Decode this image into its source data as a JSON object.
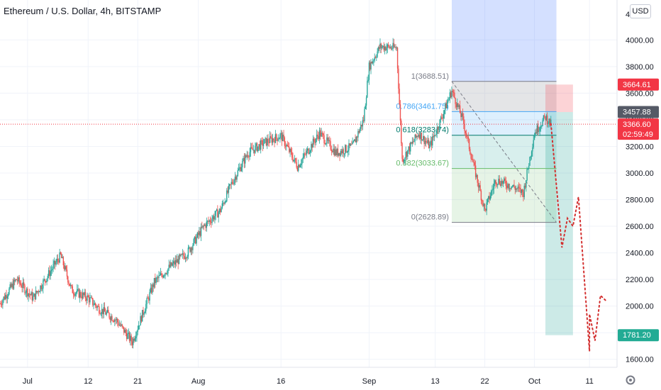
{
  "header": {
    "title": "Ethereum / U.S. Dollar, 4h, BITSTAMP",
    "currency_button": "USD"
  },
  "colors": {
    "up": "#26a69a",
    "down": "#ef5350",
    "grid": "#f0f3fa",
    "axis_text": "#131722",
    "fib_line": "#787b86",
    "current_price_line": "#f23645",
    "projection": "#d32f2f",
    "zone_blue": "#2962ff",
    "zone_red": "#f23645",
    "zone_teal": "#009688"
  },
  "chart_data": {
    "type": "candlestick",
    "symbol": "Ethereum / U.S. Dollar",
    "interval": "4h",
    "exchange": "BITSTAMP",
    "y_axis": {
      "range": [
        1540,
        4300
      ],
      "ticks": [
        4000,
        3800,
        3600,
        3400,
        3200,
        3000,
        2800,
        2600,
        2400,
        2200,
        2000,
        1800,
        1600
      ],
      "tick_labels": [
        "4000.00",
        "3800.00",
        "3600.00",
        "3400.00",
        "3200.00",
        "3000.00",
        "2800.00",
        "2600.00",
        "2400.00",
        "2200.00",
        "2000.00",
        "1800.00",
        "1600.00"
      ],
      "partial_top_label": "4"
    },
    "x_axis": {
      "start": "2021-06-26",
      "end": "2021-10-16",
      "ticks": [
        {
          "date": "2021-07-01",
          "label": "Jul"
        },
        {
          "date": "2021-07-12",
          "label": "12"
        },
        {
          "date": "2021-07-21",
          "label": "21"
        },
        {
          "date": "2021-08-01",
          "label": "Aug"
        },
        {
          "date": "2021-08-16",
          "label": "16"
        },
        {
          "date": "2021-09-01",
          "label": "Sep"
        },
        {
          "date": "2021-09-13",
          "label": "13"
        },
        {
          "date": "2021-09-22",
          "label": "22"
        },
        {
          "date": "2021-10-01",
          "label": "Oct"
        },
        {
          "date": "2021-10-11",
          "label": "11"
        }
      ]
    },
    "price_path": [
      {
        "date": "2021-06-26",
        "price": 2020
      },
      {
        "date": "2021-06-29",
        "price": 2200
      },
      {
        "date": "2021-07-02",
        "price": 2060
      },
      {
        "date": "2021-07-07",
        "price": 2380
      },
      {
        "date": "2021-07-09",
        "price": 2120
      },
      {
        "date": "2021-07-12",
        "price": 2060
      },
      {
        "date": "2021-07-14",
        "price": 1980
      },
      {
        "date": "2021-07-17",
        "price": 1900
      },
      {
        "date": "2021-07-20",
        "price": 1730
      },
      {
        "date": "2021-07-24",
        "price": 2180
      },
      {
        "date": "2021-07-27",
        "price": 2300
      },
      {
        "date": "2021-07-30",
        "price": 2400
      },
      {
        "date": "2021-08-02",
        "price": 2600
      },
      {
        "date": "2021-08-05",
        "price": 2720
      },
      {
        "date": "2021-08-07",
        "price": 2920
      },
      {
        "date": "2021-08-10",
        "price": 3150
      },
      {
        "date": "2021-08-13",
        "price": 3230
      },
      {
        "date": "2021-08-16",
        "price": 3280
      },
      {
        "date": "2021-08-19",
        "price": 3050
      },
      {
        "date": "2021-08-23",
        "price": 3300
      },
      {
        "date": "2021-08-26",
        "price": 3150
      },
      {
        "date": "2021-08-29",
        "price": 3200
      },
      {
        "date": "2021-08-31",
        "price": 3400
      },
      {
        "date": "2021-09-01",
        "price": 3800
      },
      {
        "date": "2021-09-03",
        "price": 3950
      },
      {
        "date": "2021-09-06",
        "price": 3940
      },
      {
        "date": "2021-09-07",
        "price": 3100
      },
      {
        "date": "2021-09-10",
        "price": 3300
      },
      {
        "date": "2021-09-12",
        "price": 3200
      },
      {
        "date": "2021-09-14",
        "price": 3400
      },
      {
        "date": "2021-09-16",
        "price": 3620
      },
      {
        "date": "2021-09-18",
        "price": 3400
      },
      {
        "date": "2021-09-20",
        "price": 3050
      },
      {
        "date": "2021-09-22",
        "price": 2720
      },
      {
        "date": "2021-09-24",
        "price": 2950
      },
      {
        "date": "2021-09-27",
        "price": 2900
      },
      {
        "date": "2021-09-29",
        "price": 2850
      },
      {
        "date": "2021-10-01",
        "price": 3300
      },
      {
        "date": "2021-10-03",
        "price": 3420
      },
      {
        "date": "2021-10-04",
        "price": 3367
      }
    ],
    "current_price": 3366.6,
    "fibonacci": {
      "levels": [
        {
          "ratio": "1",
          "price": 3688.51,
          "label": "1(3688.51)",
          "color": "#787b86"
        },
        {
          "ratio": "0.786",
          "price": 3461.75,
          "label": "0.786(3461.75)",
          "color": "#42a5f5"
        },
        {
          "ratio": "0.618",
          "price": 3283.74,
          "label": "0.618(3283.74)",
          "color": "#00796b"
        },
        {
          "ratio": "0.382",
          "price": 3033.67,
          "label": "0.382(3033.67)",
          "color": "#66bb6a"
        },
        {
          "ratio": "0",
          "price": 2628.89,
          "label": "0(2628.89)",
          "color": "#787b86"
        }
      ],
      "start_date": "2021-09-16",
      "end_date": "2021-10-05"
    },
    "short_position": {
      "entry": 3457.88,
      "stop": 3664.61,
      "target": 1781.2,
      "start_date": "2021-10-03",
      "end_date": "2021-10-08"
    },
    "projection_path": [
      {
        "date": "2021-10-04",
        "price": 3370
      },
      {
        "date": "2021-10-06",
        "price": 2440
      },
      {
        "date": "2021-10-07",
        "price": 2660
      },
      {
        "date": "2021-10-08",
        "price": 2600
      },
      {
        "date": "2021-10-09",
        "price": 2820
      },
      {
        "date": "2021-10-11",
        "price": 1660
      },
      {
        "date": "2021-10-11",
        "price": 1940
      },
      {
        "date": "2021-10-12",
        "price": 1740
      },
      {
        "date": "2021-10-13",
        "price": 2080
      },
      {
        "date": "2021-10-14",
        "price": 2040
      }
    ],
    "price_labels": [
      {
        "id": "stop",
        "text": "3664.61",
        "price": 3664.61,
        "color": "#f23645"
      },
      {
        "id": "entry",
        "text": "3457.88",
        "price": 3457.88,
        "color": "#555a66"
      },
      {
        "id": "current",
        "text": "3366.60",
        "countdown": "02:59:49",
        "price": 3366.6,
        "color": "#f23645"
      },
      {
        "id": "target",
        "text": "1781.20",
        "price": 1781.2,
        "color": "#22ab94"
      }
    ]
  }
}
